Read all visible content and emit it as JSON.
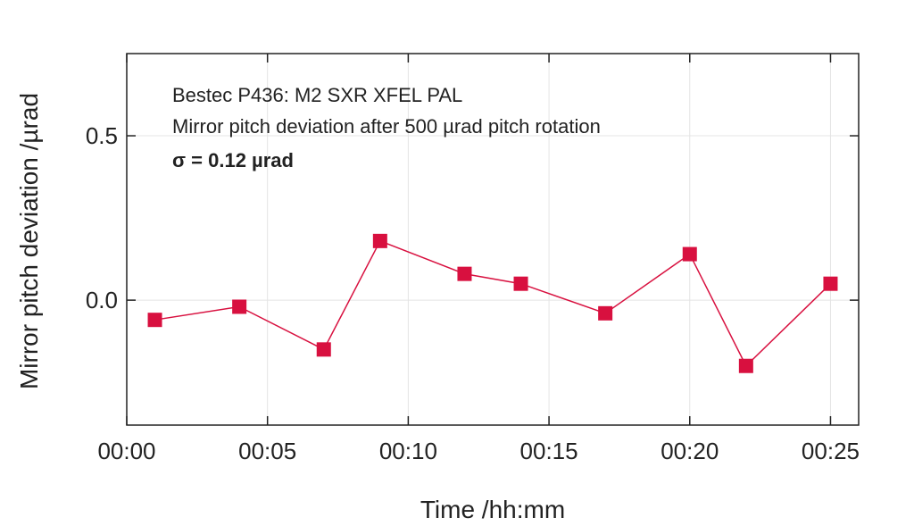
{
  "chart_data": {
    "type": "line",
    "x": [
      "00:01",
      "00:04",
      "00:07",
      "00:09",
      "00:12",
      "00:14",
      "00:17",
      "00:20",
      "00:22",
      "00:25"
    ],
    "series": [
      {
        "values": [
          -0.06,
          -0.02,
          -0.15,
          0.18,
          0.08,
          0.05,
          -0.04,
          0.14,
          -0.2,
          0.05
        ]
      }
    ],
    "xlabel": "Time /hh:mm",
    "ylabel": "Mirror pitch deviation /µrad",
    "x_ticks": [
      "00:00",
      "00:05",
      "00:10",
      "00:15",
      "00:20",
      "00:25"
    ],
    "y_ticks": [
      "0.0",
      "0.5"
    ],
    "xlim": [
      "00:00",
      "00:26"
    ],
    "ylim": [
      -0.38,
      0.75
    ],
    "grid": true,
    "series_color": "#d8103f",
    "annotations": [
      "Bestec P436: M2 SXR XFEL PAL",
      "Mirror pitch deviation after 500 µrad pitch rotation",
      "σ = 0.12 µrad"
    ]
  }
}
